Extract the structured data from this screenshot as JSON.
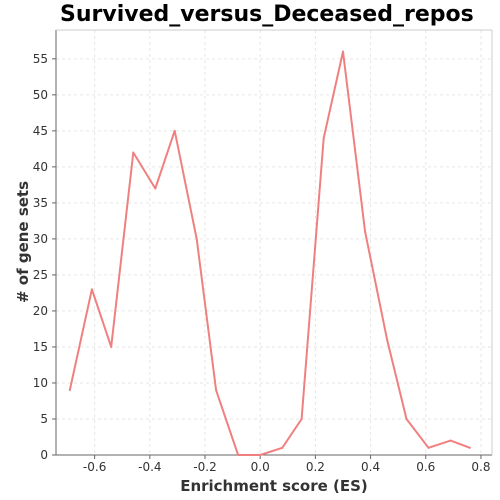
{
  "chart_data": {
    "type": "line",
    "title": "Survived_versus_Deceased_repos",
    "xlabel": "Enrichment score (ES)",
    "ylabel": "# of gene sets",
    "xlim": [
      -0.74,
      0.84
    ],
    "ylim": [
      0,
      59
    ],
    "xticks": [
      -0.6,
      -0.4,
      -0.2,
      0.0,
      0.2,
      0.4,
      0.6,
      0.8
    ],
    "xtick_labels": [
      "-0.6",
      "-0.4",
      "-0.2",
      "0.0",
      "0.2",
      "0.4",
      "0.6",
      "0.8"
    ],
    "yticks": [
      0,
      5,
      10,
      15,
      20,
      25,
      30,
      35,
      40,
      45,
      50,
      55
    ],
    "ytick_labels": [
      "0",
      "5",
      "10",
      "15",
      "20",
      "25",
      "30",
      "35",
      "40",
      "45",
      "50",
      "55"
    ],
    "grid": true,
    "series": [
      {
        "color": "#f08080",
        "x": [
          -0.69,
          -0.61,
          -0.54,
          -0.46,
          -0.38,
          -0.31,
          -0.23,
          -0.16,
          -0.08,
          0.0,
          0.08,
          0.15,
          0.23,
          0.3,
          0.38,
          0.46,
          0.53,
          0.61,
          0.69,
          0.76
        ],
        "y": [
          9,
          23,
          15,
          42,
          37,
          45,
          30,
          9,
          0,
          0,
          1,
          5,
          44,
          56,
          31,
          16,
          5,
          1,
          2,
          1
        ]
      }
    ]
  }
}
